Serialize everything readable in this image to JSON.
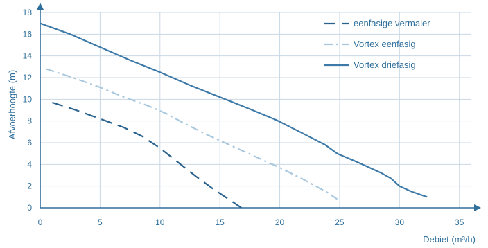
{
  "chart_data": {
    "type": "line",
    "title": "",
    "xlabel": "Debiet (m³/h)",
    "ylabel": "Afvoerhoogte (m)",
    "xlim": [
      0,
      36
    ],
    "ylim": [
      0,
      18
    ],
    "xticks": [
      0,
      5,
      10,
      15,
      20,
      25,
      30,
      35
    ],
    "yticks": [
      0,
      2,
      4,
      6,
      8,
      10,
      12,
      14,
      16,
      18
    ],
    "grid": true,
    "legend_position": "top-right",
    "colors": {
      "axis": "#2f6f9c",
      "grid": "#c9d8e4",
      "series_dark": "#2a628e",
      "series_light": "#a9c8de",
      "series_solid": "#3e7aa8"
    },
    "series": [
      {
        "name": "eenfasige vermaler",
        "style": "dashed",
        "color": "#2a628e",
        "points": [
          [
            1,
            9.7
          ],
          [
            3,
            9.0
          ],
          [
            5,
            8.2
          ],
          [
            7,
            7.4
          ],
          [
            8.5,
            6.6
          ],
          [
            10,
            5.5
          ],
          [
            11.5,
            4.2
          ],
          [
            13,
            2.9
          ],
          [
            14.5,
            1.7
          ],
          [
            16,
            0.6
          ],
          [
            16.8,
            0
          ]
        ]
      },
      {
        "name": "Vortex eenfasig",
        "style": "dashdot",
        "color": "#a9c8de",
        "points": [
          [
            0.5,
            12.8
          ],
          [
            3,
            11.9
          ],
          [
            5,
            11.1
          ],
          [
            7,
            10.2
          ],
          [
            9,
            9.4
          ],
          [
            10.5,
            8.7
          ],
          [
            12,
            7.8
          ],
          [
            14,
            6.7
          ],
          [
            16,
            5.7
          ],
          [
            18,
            4.7
          ],
          [
            20,
            3.7
          ],
          [
            22,
            2.6
          ],
          [
            24,
            1.4
          ],
          [
            24.8,
            0.8
          ]
        ]
      },
      {
        "name": "Vortex driefasig",
        "style": "solid",
        "color": "#3e7aa8",
        "points": [
          [
            0,
            17.0
          ],
          [
            2.5,
            16.0
          ],
          [
            5,
            14.8
          ],
          [
            7.5,
            13.6
          ],
          [
            10,
            12.5
          ],
          [
            12.5,
            11.3
          ],
          [
            15,
            10.2
          ],
          [
            17.5,
            9.1
          ],
          [
            19.7,
            8.1
          ],
          [
            21.5,
            7.1
          ],
          [
            23.8,
            5.8
          ],
          [
            24.8,
            5.0
          ],
          [
            26.5,
            4.2
          ],
          [
            28.5,
            3.2
          ],
          [
            29.3,
            2.7
          ],
          [
            30,
            2.0
          ],
          [
            31,
            1.5
          ],
          [
            32.3,
            1.0
          ]
        ]
      }
    ]
  }
}
